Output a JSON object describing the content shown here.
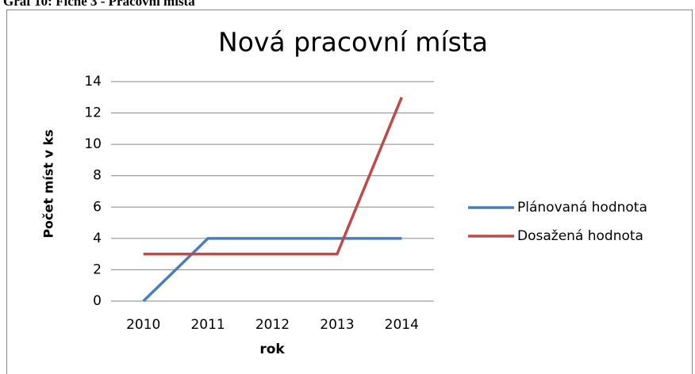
{
  "caption": "Graf 10: Fiche 3 - Pracovní místa",
  "chart_data": {
    "type": "line",
    "title": "Nová pracovní místa",
    "x_label": "rok",
    "y_label": "Počet míst v ks",
    "categories": [
      "2010",
      "2011",
      "2012",
      "2013",
      "2014"
    ],
    "series": [
      {
        "name": "Plánovaná hodnota",
        "color": "#4a7ebb",
        "values": [
          0,
          4,
          4,
          4,
          4
        ]
      },
      {
        "name": "Dosažená hodnota",
        "color": "#be4b48",
        "values": [
          3,
          3,
          3,
          3,
          13
        ]
      }
    ],
    "ylim": [
      0,
      14
    ],
    "yticks": [
      0,
      2,
      4,
      6,
      8,
      10,
      12,
      14
    ],
    "grid": true,
    "legend": "right"
  }
}
